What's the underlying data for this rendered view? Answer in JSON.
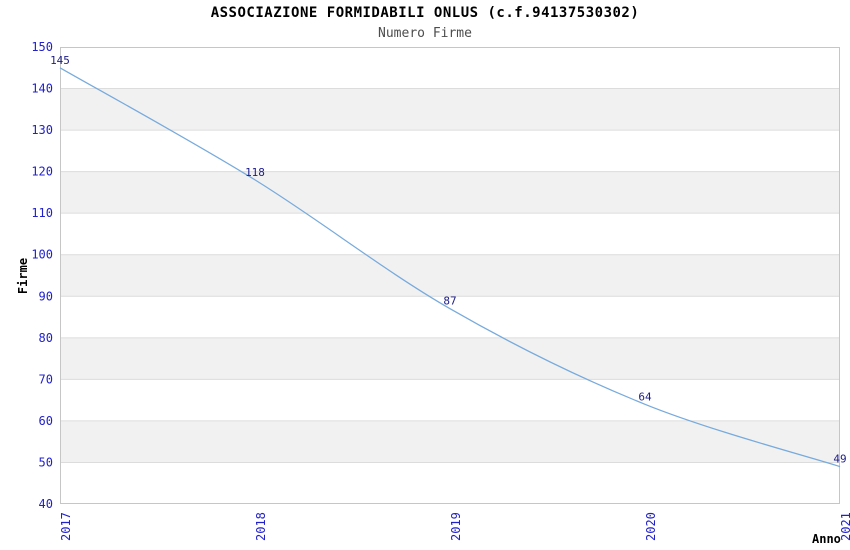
{
  "chart_data": {
    "type": "line",
    "title": "ASSOCIAZIONE FORMIDABILI ONLUS (c.f.94137530302)",
    "subtitle": "Numero Firme",
    "xlabel": "Anno",
    "ylabel": "Firme",
    "categories": [
      "2017",
      "2018",
      "2019",
      "2020",
      "2021"
    ],
    "series": [
      {
        "name": "Numero Firme",
        "values": [
          145,
          118,
          87,
          64,
          49
        ]
      }
    ],
    "data_labels": [
      "145",
      "118",
      "87",
      "64",
      "49"
    ],
    "ylim": [
      40,
      150
    ],
    "ytick_step": 10,
    "yticks": [
      "40",
      "50",
      "60",
      "70",
      "80",
      "90",
      "100",
      "110",
      "120",
      "130",
      "140",
      "150"
    ],
    "grid": true,
    "legend": "none",
    "band_fill": "alternating-horizontal",
    "colors": {
      "line": "#77aadd",
      "tick_label": "#2121cc",
      "data_label": "#1c1c8a",
      "band": "#f1f1f1",
      "grid": "#dcdcdc",
      "border": "#c6c6c6",
      "title": "#000000",
      "subtitle": "#4d4d4d",
      "axis_title": "#000000",
      "background": "#ffffff"
    }
  }
}
